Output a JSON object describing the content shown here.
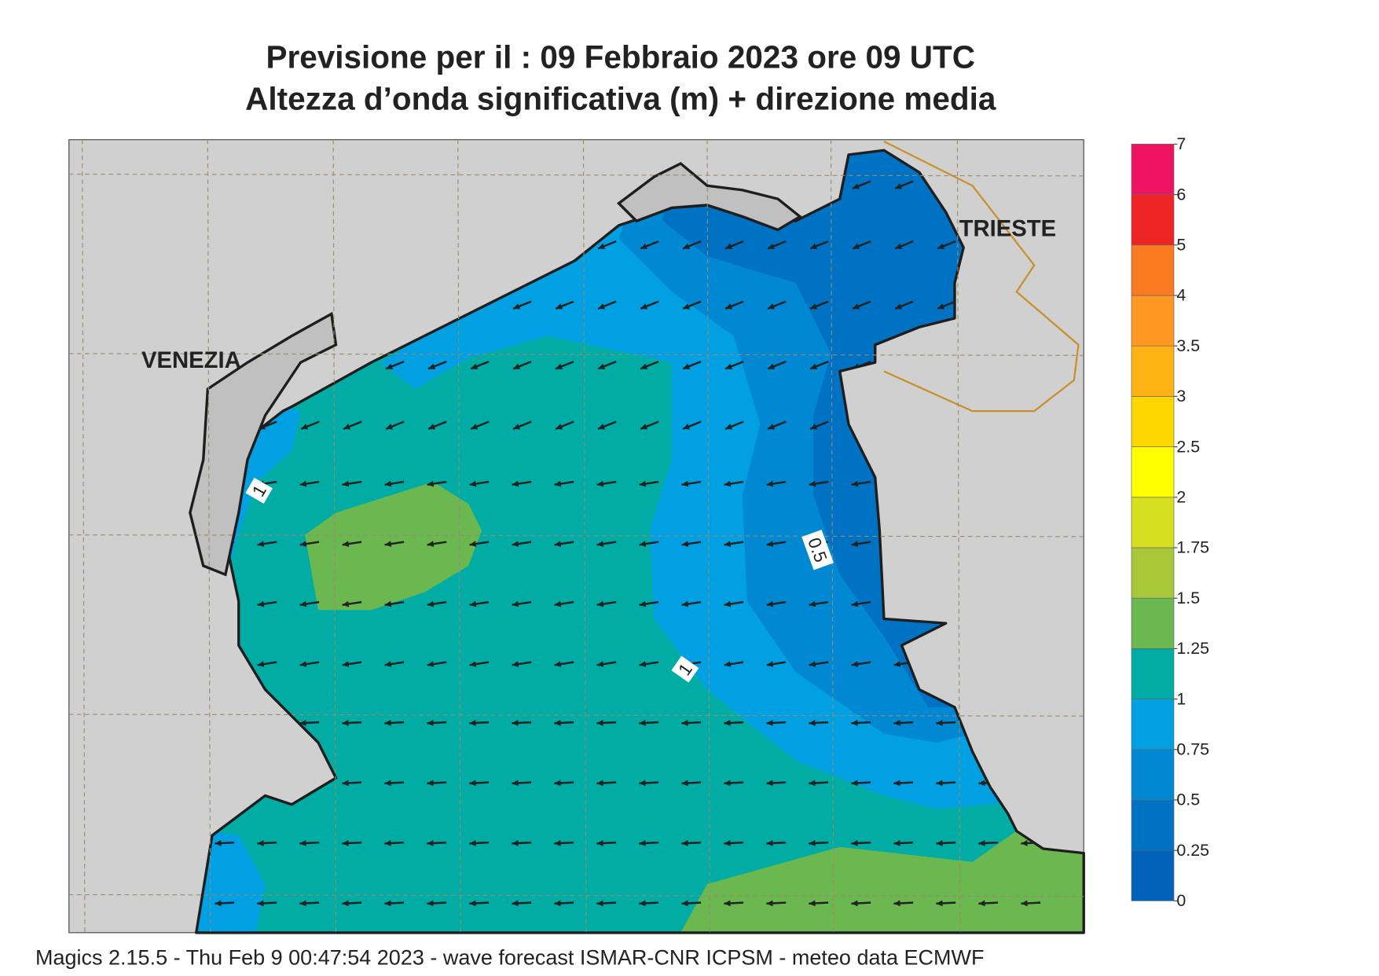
{
  "header": {
    "title_line1": "Previsione per il  :  09  Febbraio 2023   ore 09 UTC",
    "title_line2": "Altezza d’onda significativa (m) + direzione media"
  },
  "map": {
    "places": [
      "VENEZIA",
      "TRIESTE"
    ],
    "contour_labels": [
      "1",
      "0.5",
      "1"
    ]
  },
  "colorbar": {
    "ticks": [
      0,
      0.25,
      0.5,
      0.75,
      1,
      1.25,
      1.5,
      1.75,
      2,
      2.5,
      3,
      3.5,
      4,
      5,
      6,
      7
    ],
    "colors": [
      "#0062b8",
      "#0072c4",
      "#0088d2",
      "#00a0e2",
      "#00aca4",
      "#6cb850",
      "#a8c83a",
      "#d6e020",
      "#ffff00",
      "#ffd600",
      "#ffb214",
      "#ff9822",
      "#fa7a22",
      "#ee2424",
      "#ee1262"
    ]
  },
  "footer": "Magics 2.15.5 - Thu Feb  9 00:47:54 2023 - wave forecast  ISMAR-CNR  ICPSM - meteo data   ECMWF"
}
